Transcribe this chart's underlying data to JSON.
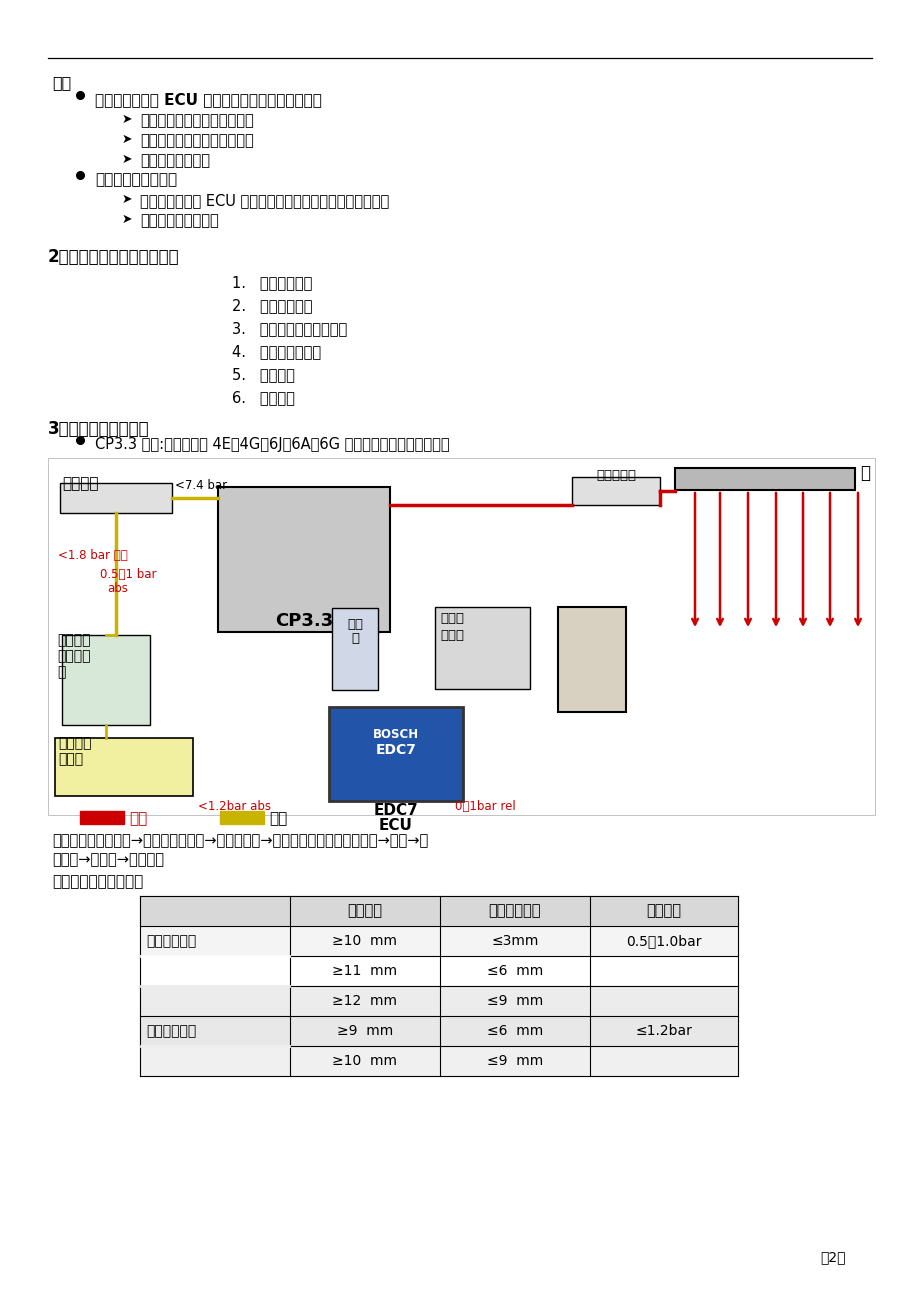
{
  "page_bg": "#ffffff",
  "page_number": "第2页",
  "section_shuoming": "说明",
  "bullet1_main": "电控喷油器根据 ECU 发出的喷油指令脉冲进行喷油",
  "bullet1_sub1": "喷油始点由指令脉冲起点控制",
  "bullet1_sub2": "喷油量由指令脉冲的宽度控制",
  "bullet1_sub3": "可以实现多次喷射",
  "bullet2_main": "喷油压力为共轨压力",
  "bullet2_sub1": "共轨压力可以由 ECU 发出的共轨压力指令由高压供油泵控制",
  "bullet2_sub2": "共轨压力是闭环控制",
  "section2_title": "2、高压共轨控制常用策略：",
  "list_items": [
    "起动控制策略",
    "怠速控制策略",
    "油门油量标定及其实现",
    "热保护控制策略",
    "冒烟极限",
    "燃油预喷"
  ],
  "section3_title": "3、油路走向原理图：",
  "cp33_note": "CP3.3 油泵:适用于玉柴 4E、4G、6J、6A、6G 等中型系列博世共轨发动机",
  "flow_line1": "燃油主要走向：油箱→粗滤（手油泵）→燃油分配器→输油泵（在高压油泵后端）→细滤→高",
  "flow_line2": "压油泵→共轨管→喷油器。",
  "table_title": "低压管路典型技术参数",
  "table_headers": [
    "",
    "管内内径",
    "允许油管长度",
    "允许压力"
  ],
  "table_rows": [
    [
      "燃油箱进油管",
      "≥10  mm",
      "≤3mm",
      "0.5－1.0bar"
    ],
    [
      "",
      "≥11  mm",
      "≤6  mm",
      ""
    ],
    [
      "",
      "≥12  mm",
      "≤9  mm",
      ""
    ],
    [
      "燃油箱进回管",
      "≥9  mm",
      "≤6  mm",
      "≤1.2bar"
    ],
    [
      "",
      "≥10  mm",
      "≤9  mm",
      ""
    ]
  ],
  "red": "#cc0000",
  "yellow_low": "#c8b400",
  "label_main_filter": "主滤清器",
  "label_rail_ps": "轨压传感器",
  "label_rail": "轨",
  "label_cp33": "CP3.3",
  "label_sensor": "传感",
  "label_sensor2": "器",
  "label_actuator": "执行器",
  "label_injector": "喷油器",
  "label_edc7": "EDC7",
  "label_ecu": "ECU",
  "label_water_sep1": "带水分离",
  "label_water_sep2": "器的预滤",
  "label_water_sep3": "器",
  "label_tank1": "带过滤器",
  "label_tank2": "的油箱",
  "label_high_press": "高压",
  "label_low_press": "低压",
  "ann_p1": "<7.4 bar",
  "ann_p2": "<1.8 bar 压差",
  "ann_p3": "0.5～1 bar",
  "ann_p3b": "abs",
  "ann_p4": "<1.2bar abs",
  "ann_p5": "0～1bar rel"
}
